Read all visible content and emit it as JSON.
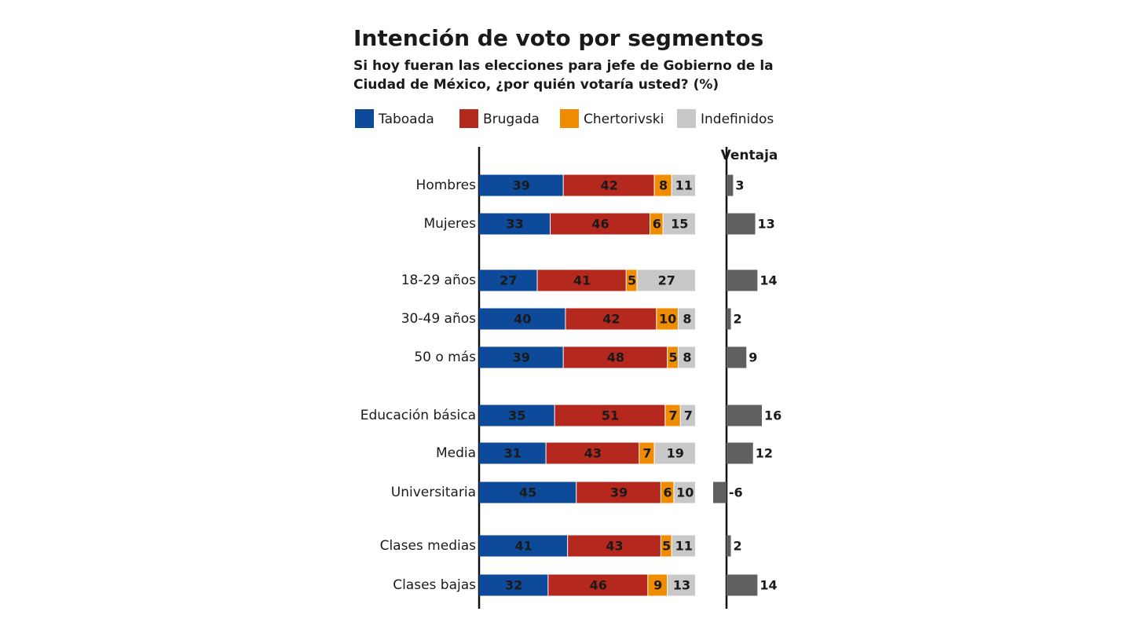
{
  "chart_data": [
    {
      "type": "stacked_bar",
      "title": "Intención de voto por segmentos",
      "subtitle": [
        "Si hoy fueran las elecciones para jefe de Gobierno de la",
        "Ciudad de México, ¿por quién votaría usted? (%)"
      ],
      "categories": [
        "Hombres",
        "Mujeres",
        "18-29 años",
        "30-49 años",
        "50 o más",
        "Educación básica",
        "Media",
        "Universitaria",
        "Clases medias",
        "Clases bajas"
      ],
      "series": [
        {
          "name": "Taboada",
          "color": "#0d4a9a",
          "values": [
            39,
            33,
            27,
            40,
            39,
            35,
            31,
            45,
            41,
            32
          ]
        },
        {
          "name": "Brugada",
          "color": "#b5281e",
          "values": [
            42,
            46,
            41,
            42,
            48,
            51,
            43,
            39,
            43,
            46
          ]
        },
        {
          "name": "Chertorivski",
          "color": "#f08c00",
          "values": [
            8,
            6,
            5,
            10,
            5,
            7,
            7,
            6,
            5,
            9
          ]
        },
        {
          "name": "Indefinidos",
          "color": "#c8c8c8",
          "values": [
            11,
            15,
            27,
            8,
            8,
            7,
            19,
            10,
            11,
            13
          ]
        }
      ],
      "xlim": [
        0,
        100
      ]
    },
    {
      "type": "bar",
      "title": "Ventaja",
      "values": [
        3,
        13,
        14,
        2,
        9,
        16,
        12,
        -6,
        2,
        14
      ],
      "color": "#606060",
      "xlim": [
        -6,
        16
      ]
    }
  ]
}
